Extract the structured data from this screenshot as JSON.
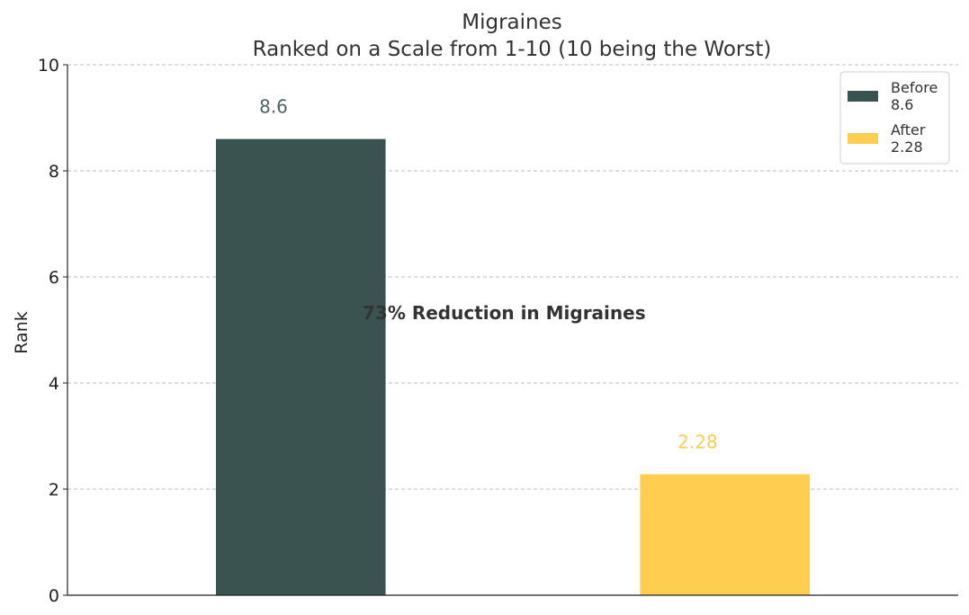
{
  "chart_data": {
    "type": "bar",
    "title": "Migraines",
    "subtitle": "Ranked on a Scale from 1-10 (10 being the Worst)",
    "xlabel": "",
    "ylabel": "Rank",
    "ylim": [
      0,
      10
    ],
    "yticks": [
      0,
      2,
      4,
      6,
      8,
      10
    ],
    "grid": true,
    "legend_position": "top-right",
    "annotation": "73% Reduction in Migraines",
    "categories": [
      "Before",
      "After"
    ],
    "values": [
      8.6,
      2.28
    ],
    "value_labels": [
      "8.6",
      "2.28"
    ],
    "colors": [
      "#3b5350",
      "#ffcd50"
    ],
    "legend": [
      {
        "line1": "Before",
        "line2": "8.6",
        "color": "#3b5350"
      },
      {
        "line1": "After",
        "line2": "2.28",
        "color": "#ffcd50"
      }
    ]
  }
}
